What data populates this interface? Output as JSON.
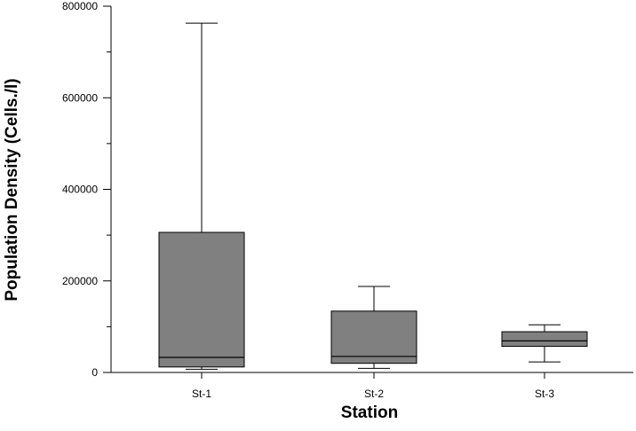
{
  "chart_data": {
    "type": "box",
    "xlabel": "Station",
    "ylabel": "Population Density (Cells./l)",
    "ylim": [
      0,
      800000
    ],
    "y_ticks": [
      0,
      200000,
      400000,
      600000,
      800000
    ],
    "y_tick_labels": [
      "0",
      "200000",
      "400000",
      "600000",
      "800000"
    ],
    "y_minor_step": 100000,
    "categories": [
      "St-1",
      "St-2",
      "St-3"
    ],
    "boxes": [
      {
        "category": "St-1",
        "whisker_low": 7000,
        "q1": 12000,
        "median": 33000,
        "q3": 306000,
        "whisker_high": 763000
      },
      {
        "category": "St-2",
        "whisker_low": 9000,
        "q1": 20000,
        "median": 35000,
        "q3": 134000,
        "whisker_high": 188000
      },
      {
        "category": "St-3",
        "whisker_low": 23000,
        "q1": 57000,
        "median": 69000,
        "q3": 89000,
        "whisker_high": 104000
      }
    ],
    "box_color": "#808080",
    "grid": false,
    "legend": "none"
  }
}
